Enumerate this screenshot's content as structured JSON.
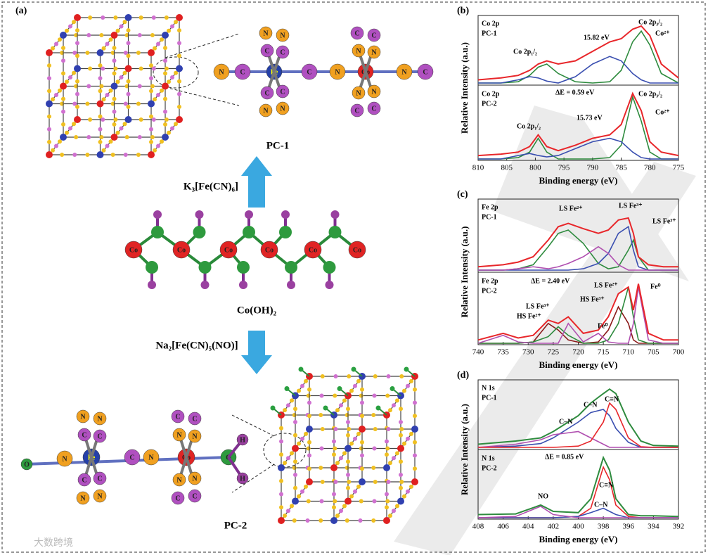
{
  "panel_a": {
    "label": "(a)",
    "pc1": "PC-1",
    "reagent1": "K₃[Fe(CN)₆]",
    "precursor": "Co(OH)₂",
    "reagent2": "Na₂[Fe(CN)₅(NO)]",
    "pc2": "PC-2",
    "atoms": [
      "Fe",
      "Co",
      "C",
      "N",
      "O",
      "H"
    ]
  },
  "watermark": "大数跨境",
  "chart_data": [
    {
      "type": "line",
      "label": "(b)",
      "xlabel": "Binding energy (eV)",
      "ylabel": "Relative Intensity (a.u.)",
      "xlim": [
        810,
        775
      ],
      "xticks": [
        810,
        805,
        800,
        795,
        790,
        785,
        780,
        775
      ],
      "ylim": [
        0,
        1
      ],
      "x": [
        810,
        806,
        803,
        801,
        799.5,
        798,
        796,
        793,
        790,
        787,
        785,
        783,
        781.5,
        780,
        778,
        775
      ],
      "subplots": [
        {
          "annotations": [
            "Co 2p",
            "PC-1",
            "Co 2p₁/₂",
            "15.82 eV",
            "Co 2p₃/₂",
            "Co²⁺"
          ],
          "series": [
            {
              "color": "#2e8b3e",
              "values": [
                0,
                0,
                0.02,
                0.12,
                0.25,
                0.3,
                0.15,
                0.02,
                0,
                0.02,
                0.2,
                0.65,
                0.82,
                0.6,
                0.15,
                0
              ]
            },
            {
              "color": "#3a4fb0",
              "values": [
                0,
                0,
                0.05,
                0.1,
                0.08,
                0.03,
                0,
                0.1,
                0.3,
                0.42,
                0.35,
                0.15,
                0.05,
                0,
                0,
                0
              ]
            },
            {
              "color": "#e8262a",
              "values": [
                0.05,
                0.08,
                0.12,
                0.2,
                0.3,
                0.35,
                0.3,
                0.35,
                0.5,
                0.65,
                0.7,
                0.85,
                0.9,
                0.75,
                0.3,
                0.08
              ]
            }
          ]
        },
        {
          "annotations": [
            "Co 2p",
            "PC-2",
            "ΔE = 0.59 eV",
            "Co 2p₃/₂",
            "Co²⁺",
            "Co 2p₁/₂",
            "15.73 eV"
          ],
          "series": [
            {
              "color": "#2e8b3e",
              "values": [
                0,
                0,
                0.02,
                0.1,
                0.3,
                0.1,
                0,
                0,
                0,
                0.02,
                0.2,
                0.9,
                0.55,
                0.1,
                0,
                0
              ]
            },
            {
              "color": "#3a4fb0",
              "values": [
                0,
                0,
                0.05,
                0.08,
                0.05,
                0.03,
                0.05,
                0.15,
                0.25,
                0.3,
                0.25,
                0.1,
                0.02,
                0,
                0,
                0
              ]
            },
            {
              "color": "#e8262a",
              "values": [
                0.05,
                0.07,
                0.1,
                0.18,
                0.35,
                0.18,
                0.12,
                0.2,
                0.3,
                0.35,
                0.5,
                0.95,
                0.7,
                0.25,
                0.1,
                0.05
              ]
            }
          ]
        }
      ]
    },
    {
      "type": "line",
      "label": "(c)",
      "xlabel": "Binding energy (eV)",
      "ylabel": "Relative Intensity (a.u.)",
      "xlim": [
        740,
        700
      ],
      "xticks": [
        740,
        735,
        730,
        725,
        720,
        715,
        710,
        705,
        700
      ],
      "ylim": [
        0,
        1
      ],
      "x": [
        740,
        735,
        732,
        729,
        726,
        724,
        722,
        719,
        716,
        714,
        712,
        710,
        709,
        708,
        706,
        703,
        700
      ],
      "subplots": [
        {
          "annotations": [
            "Fe 2p",
            "PC-1",
            "LS Fe²⁺",
            "LS Fe³⁺",
            "LS Fe³⁺"
          ],
          "series": [
            {
              "color": "#2e8b3e",
              "values": [
                0,
                0,
                0.02,
                0.08,
                0.35,
                0.55,
                0.6,
                0.4,
                0.1,
                0.02,
                0.05,
                0.3,
                0.45,
                0.2,
                0,
                0,
                0
              ]
            },
            {
              "color": "#3a4fb0",
              "values": [
                0,
                0,
                0,
                0,
                0,
                0,
                0,
                0.02,
                0.1,
                0.25,
                0.55,
                0.65,
                0.3,
                0.05,
                0,
                0,
                0
              ]
            },
            {
              "color": "#b04fb0",
              "values": [
                0,
                0,
                0.02,
                0.05,
                0.02,
                0.05,
                0.1,
                0.2,
                0.35,
                0.25,
                0.08,
                0,
                0,
                0,
                0,
                0,
                0
              ]
            },
            {
              "color": "#e8262a",
              "values": [
                0.05,
                0.08,
                0.12,
                0.2,
                0.45,
                0.65,
                0.7,
                0.62,
                0.55,
                0.6,
                0.75,
                0.78,
                0.55,
                0.2,
                0.08,
                0.05,
                0.05
              ]
            }
          ]
        },
        {
          "annotations": [
            "Fe 2p",
            "PC-2",
            "ΔE = 2.40 eV",
            "LS Fe²⁺",
            "LS Fe³⁺",
            "HS Fe²⁺",
            "HS Fe³⁺",
            "Fe⁰",
            "Fe⁰"
          ],
          "series": [
            {
              "color": "#8b1a1a",
              "values": [
                0,
                0,
                0,
                0.02,
                0.3,
                0.2,
                0.05,
                0,
                0.02,
                0.2,
                0.55,
                0.3,
                0.05,
                0,
                0,
                0,
                0
              ]
            },
            {
              "color": "#2e8b3e",
              "values": [
                0,
                0,
                0,
                0.02,
                0.1,
                0.25,
                0.12,
                0,
                0,
                0.05,
                0.3,
                0.85,
                0.4,
                0.05,
                0,
                0,
                0
              ]
            },
            {
              "color": "#b04fb0",
              "values": [
                0,
                0.12,
                0.02,
                0,
                0,
                0,
                0.3,
                0.02,
                0.15,
                0.02,
                0,
                0,
                0.3,
                0.85,
                0.05,
                0,
                0
              ]
            },
            {
              "color": "#e8262a",
              "values": [
                0.05,
                0.15,
                0.08,
                0.12,
                0.35,
                0.3,
                0.4,
                0.15,
                0.2,
                0.4,
                0.75,
                0.85,
                0.5,
                0.9,
                0.15,
                0.05,
                0.05
              ]
            }
          ]
        }
      ]
    },
    {
      "type": "line",
      "label": "(d)",
      "xlabel": "Binding energy (eV)",
      "ylabel": "Relative Intensity (a.u.)",
      "xlim": [
        408,
        392
      ],
      "xticks": [
        408,
        406,
        404,
        402,
        400,
        398,
        396,
        394,
        392
      ],
      "ylim": [
        0,
        1
      ],
      "x": [
        408,
        405,
        403,
        402,
        400,
        399,
        398,
        397.5,
        397,
        396,
        395,
        394,
        392
      ],
      "subplots": [
        {
          "annotations": [
            "N 1s",
            "PC-1",
            "C–N",
            "C–N",
            "C≡N"
          ],
          "series": [
            {
              "color": "#3a4fb0",
              "values": [
                0,
                0.02,
                0.06,
                0.15,
                0.4,
                0.55,
                0.6,
                0.5,
                0.3,
                0.08,
                0,
                0,
                0
              ]
            },
            {
              "color": "#b04fb0",
              "values": [
                0,
                0.05,
                0.12,
                0.2,
                0.25,
                0.15,
                0.05,
                0,
                0,
                0,
                0,
                0,
                0
              ]
            },
            {
              "color": "#e8262a",
              "values": [
                0,
                0,
                0,
                0,
                0.02,
                0.1,
                0.4,
                0.7,
                0.6,
                0.15,
                0.01,
                0,
                0
              ]
            },
            {
              "color": "#2e8b3e",
              "values": [
                0.05,
                0.1,
                0.15,
                0.25,
                0.5,
                0.7,
                0.85,
                0.92,
                0.85,
                0.4,
                0.1,
                0.03,
                0.02
              ]
            }
          ]
        },
        {
          "annotations": [
            "N 1s",
            "PC-2",
            "ΔE = 0.85 eV",
            "NO",
            "C≡N",
            "C–N"
          ],
          "series": [
            {
              "color": "#e8262a",
              "values": [
                0,
                0,
                0,
                0,
                0.02,
                0.15,
                0.8,
                0.6,
                0.2,
                0.02,
                0,
                0,
                0
              ]
            },
            {
              "color": "#3a4fb0",
              "values": [
                0,
                0,
                0,
                0,
                0.02,
                0.08,
                0.15,
                0.1,
                0.05,
                0,
                0,
                0,
                0
              ]
            },
            {
              "color": "#b04fb0",
              "values": [
                0,
                0.02,
                0.18,
                0.05,
                0,
                0,
                0,
                0,
                0,
                0,
                0,
                0,
                0
              ]
            },
            {
              "color": "#2e8b3e",
              "values": [
                0.05,
                0.06,
                0.2,
                0.1,
                0.08,
                0.3,
                0.95,
                0.75,
                0.3,
                0.05,
                0.03,
                0.03,
                0.02
              ]
            }
          ]
        }
      ]
    }
  ]
}
